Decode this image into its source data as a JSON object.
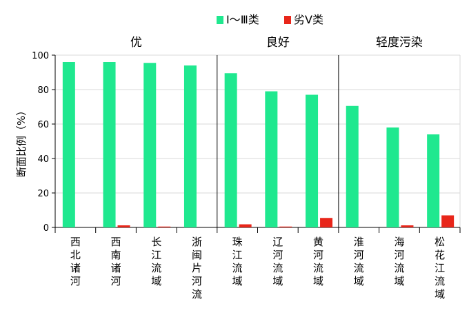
{
  "chart_data": {
    "type": "bar",
    "ylabel": "断面比例（%）",
    "ylim": [
      0,
      100
    ],
    "yticks": [
      "0",
      "20",
      "40",
      "60",
      "80",
      "100"
    ],
    "grid": true,
    "legend_position": "top-right",
    "categories": [
      "西北诸河",
      "西南诸河",
      "长江流域",
      "浙闽片河流",
      "珠江流域",
      "辽河流域",
      "黄河流域",
      "淮河流域",
      "海河流域",
      "松花江流域"
    ],
    "groups": [
      {
        "label": "优",
        "categories": 4
      },
      {
        "label": "良好",
        "categories": 3
      },
      {
        "label": "轻度污染",
        "categories": 3
      }
    ],
    "series": [
      {
        "name": "Ⅰ～Ⅲ类",
        "color": "#1fe88f",
        "values": [
          96,
          96,
          95.5,
          94,
          89.5,
          79,
          77,
          70.5,
          58,
          54
        ]
      },
      {
        "name": "劣Ⅴ类",
        "color": "#e8261a",
        "values": [
          0,
          1.2,
          0.5,
          0,
          1.8,
          0.5,
          5.5,
          0,
          1.2,
          7
        ]
      }
    ]
  }
}
